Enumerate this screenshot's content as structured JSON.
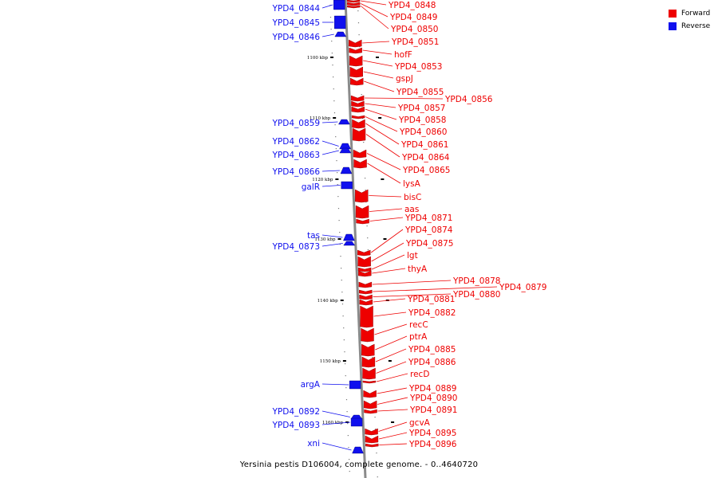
{
  "caption": "Yersinia pestis D106004, complete genome. - 0..4640720",
  "legend": [
    {
      "label": "Forward",
      "color": "#ee0000"
    },
    {
      "label": "Reverse",
      "color": "#1010ee"
    }
  ],
  "colors": {
    "forward": "#ee0000",
    "reverse": "#1010ee",
    "axis": "#888888"
  },
  "scale_labels": [
    "1100 kbp",
    "1110 kbp",
    "1120 kbp",
    "1130 kbp",
    "1140 kbp",
    "1150 kbp",
    "1160 kbp"
  ],
  "reverse_genes": [
    "YPD4_0844",
    "YPD4_0845",
    "YPD4_0846",
    "YPD4_0859",
    "YPD4_0862",
    "YPD4_0863",
    "YPD4_0866",
    "galR",
    "tas",
    "YPD4_0873",
    "argA",
    "YPD4_0892",
    "YPD4_0893",
    "xni"
  ],
  "forward_genes": [
    "YPD4_0848",
    "YPD4_0849",
    "YPD4_0850",
    "YPD4_0851",
    "hofF",
    "YPD4_0853",
    "gspJ",
    "YPD4_0855",
    "YPD4_0856",
    "YPD4_0857",
    "YPD4_0858",
    "YPD4_0860",
    "YPD4_0861",
    "YPD4_0864",
    "YPD4_0865",
    "lysA",
    "bisC",
    "aas",
    "YPD4_0871",
    "YPD4_0874",
    "YPD4_0875",
    "lgt",
    "thyA",
    "YPD4_0878",
    "YPD4_0879",
    "YPD4_0880",
    "YPD4_0881",
    "YPD4_0882",
    "recC",
    "ptrA",
    "YPD4_0885",
    "YPD4_0886",
    "recD",
    "YPD4_0889",
    "YPD4_0890",
    "YPD4_0891",
    "gcvA",
    "YPD4_0895",
    "YPD4_0896"
  ]
}
